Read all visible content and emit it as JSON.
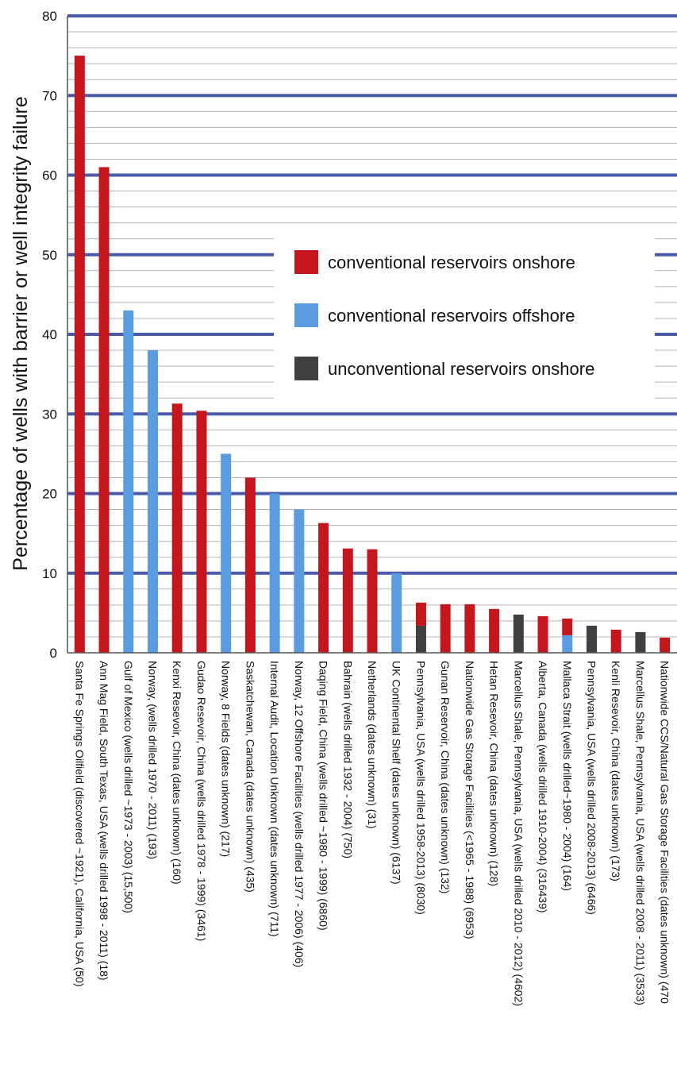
{
  "chart_data": {
    "type": "bar",
    "title": "",
    "xlabel": "",
    "ylabel": "Percentage of wells with barrier or well integrity failure",
    "ylim": [
      0,
      80
    ],
    "yticks": [
      0,
      10,
      20,
      30,
      40,
      50,
      60,
      70,
      80
    ],
    "grid": true,
    "legend_position": "center-right",
    "legend": [
      {
        "name": "conventional reservoirs onshore",
        "color": "#c4161c"
      },
      {
        "name": "conventional reservoirs offshore",
        "color": "#5b9be0"
      },
      {
        "name": "unconventional reservoirs onshore",
        "color": "#404040"
      }
    ],
    "categories": [
      "Santa Fe Springs Oilfield (discovered ~1921), California, USA (50)",
      "Ann Mag Field, South Texas, USA (wells drilled 1998 - 2011) (18)",
      "Gulf of Mexico (wells drilled ~1973 - 2003) (15,500)",
      "Norway, (wells drilled 1970 - 2011) (193)",
      "Kenxi Resevoir, China (dates unknown) (160)",
      "Gudao Resevoir, China (wells drilled 1978 - 1999) (3461)",
      "Norway, 8 Fields (dates unknown) (217)",
      "Saskatchewan, Canada (dates unknown) (435)",
      "Internal Audit, Location Unknown (dates unknown) (711)",
      "Norway, 12 Offshore Facilities (wells drilled 1977 - 2006) (406)",
      "Daqing Field, China (wells drilled ~1980 - 1999) (6860)",
      "Bahrain (wells drilled 1932 - 2004) (750)",
      "Netherlands (dates unknown) (31)",
      "UK Continental Shelf (dates unknown) (6137)",
      "Pennsylvania, USA (wells drilled 1958-2013) (8030)",
      "Gunan Reservoir, China (dates unknown) (132)",
      "Nationwide Gas Storage Facilities (<1965 - 1988) (6953)",
      "Hetan Resevoir, China (dates unknown) (128)",
      "Marcellus Shale, Pennsylvania, USA (wells drilled 2010 - 2012) (4602)",
      "Alberta, Canada (wells drilled 1910-2004) (316439)",
      "Mallaca Strait (wells drilled~1980 - 2004) (164)",
      "Pennsylvania, USA (wells drilled 2008-2013) (6466)",
      "Kenli Resevoir, China (dates unknown) (173)",
      "Marcellus Shale, Pennsylvania, USA (wells drilled 2008 - 2011) (3533)",
      "Nationwide CCS/Natural Gas Storage Facilities (dates unknown) (470"
    ],
    "series": [
      {
        "name": "conventional reservoirs onshore",
        "color": "#c4161c",
        "values": [
          75,
          61,
          0,
          0,
          31.3,
          30.4,
          0,
          22,
          0,
          0,
          16.3,
          13.1,
          13,
          0,
          2.9,
          6.1,
          6.1,
          5.5,
          0,
          4.6,
          2.1,
          0,
          2.9,
          0,
          1.9
        ]
      },
      {
        "name": "conventional reservoirs offshore",
        "color": "#5b9be0",
        "values": [
          0,
          0,
          43,
          38,
          0,
          0,
          25,
          0,
          20,
          18,
          0,
          0,
          0,
          10,
          0,
          0,
          0,
          0,
          0,
          0,
          2.2,
          0,
          0,
          0,
          0
        ]
      },
      {
        "name": "unconventional reservoirs onshore",
        "color": "#404040",
        "values": [
          0,
          0,
          0,
          0,
          0,
          0,
          0,
          0,
          0,
          0,
          0,
          0,
          0,
          0,
          3.4,
          0,
          0,
          0,
          4.8,
          0,
          0,
          3.4,
          0,
          2.6,
          0
        ]
      }
    ],
    "stack_order": [
      "unconventional reservoirs onshore",
      "conventional reservoirs offshore",
      "conventional reservoirs onshore"
    ]
  }
}
